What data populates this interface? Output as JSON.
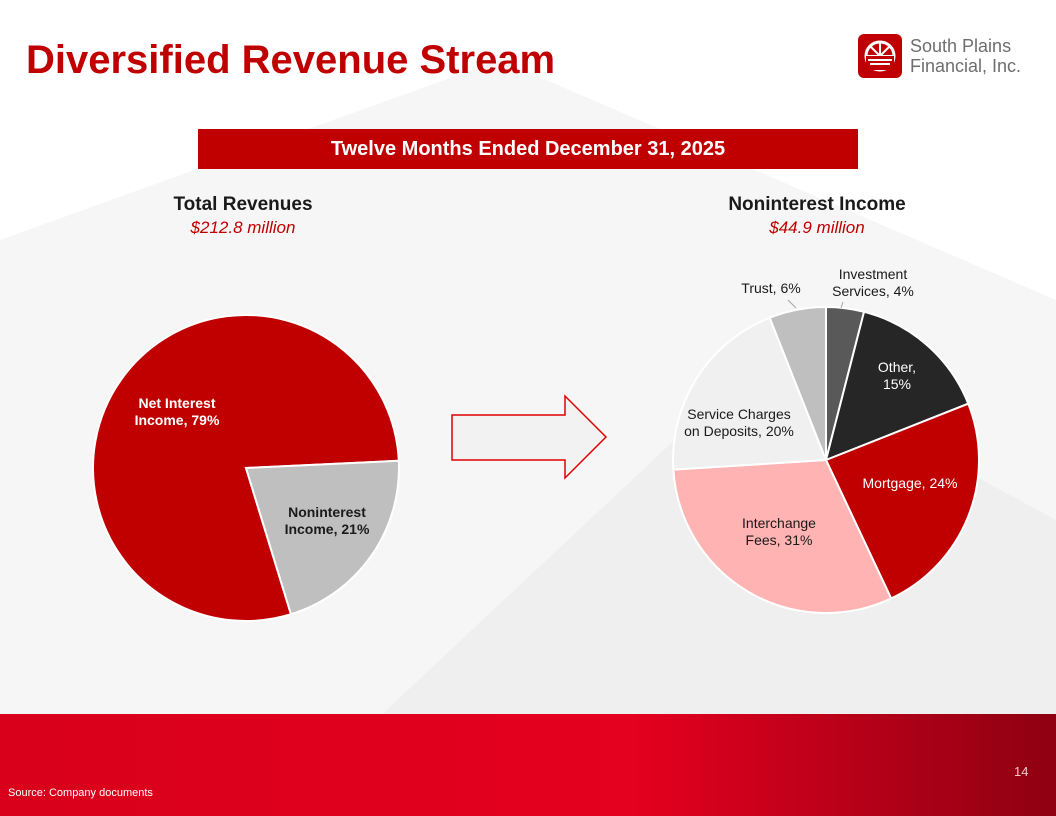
{
  "page": {
    "title": "Diversified Revenue Stream",
    "period": "Twelve Months Ended December 31, 2025",
    "source": "Source: Company documents",
    "page_number": "14"
  },
  "logo": {
    "line1": "South Plains",
    "line2": "Financial, Inc.",
    "color": "#c00000"
  },
  "chart_data": [
    {
      "type": "pie",
      "title": "Total Revenues",
      "subtitle": "$212.8 million",
      "slices": [
        {
          "label": "Net Interest Income, 79%",
          "lines": [
            "Net Interest",
            "Income, 79%"
          ],
          "value": 79,
          "color": "#c00000",
          "text_color": "#ffffff"
        },
        {
          "label": "Noninterest Income, 21%",
          "lines": [
            "Noninterest",
            "Income, 21%"
          ],
          "value": 21,
          "color": "#bfbfbf",
          "text_color": "#1a1a1a"
        }
      ]
    },
    {
      "type": "pie",
      "title": "Noninterest Income",
      "subtitle": "$44.9 million",
      "slices": [
        {
          "label": "Investment Services, 4%",
          "lines": [
            "Investment",
            "Services, 4%"
          ],
          "value": 4,
          "color": "#595959",
          "text_color": "#1a1a1a"
        },
        {
          "label": "Other, 15%",
          "lines": [
            "Other,",
            "15%"
          ],
          "value": 15,
          "color": "#262626",
          "text_color": "#ffffff"
        },
        {
          "label": "Mortgage, 24%",
          "lines": [
            "Mortgage, 24%"
          ],
          "value": 24,
          "color": "#c00000",
          "text_color": "#ffffff"
        },
        {
          "label": "Interchange Fees, 31%",
          "lines": [
            "Interchange",
            "Fees, 31%"
          ],
          "value": 31,
          "color": "#ffb3b3",
          "text_color": "#1a1a1a"
        },
        {
          "label": "Service Charges on Deposits, 20%",
          "lines": [
            "Service Charges",
            "on Deposits, 20%"
          ],
          "value": 20,
          "color": "#f0f0f0",
          "text_color": "#1a1a1a"
        },
        {
          "label": "Trust, 6%",
          "lines": [
            "Trust, 6%"
          ],
          "value": 6,
          "color": "#bfbfbf",
          "text_color": "#1a1a1a"
        }
      ]
    }
  ]
}
